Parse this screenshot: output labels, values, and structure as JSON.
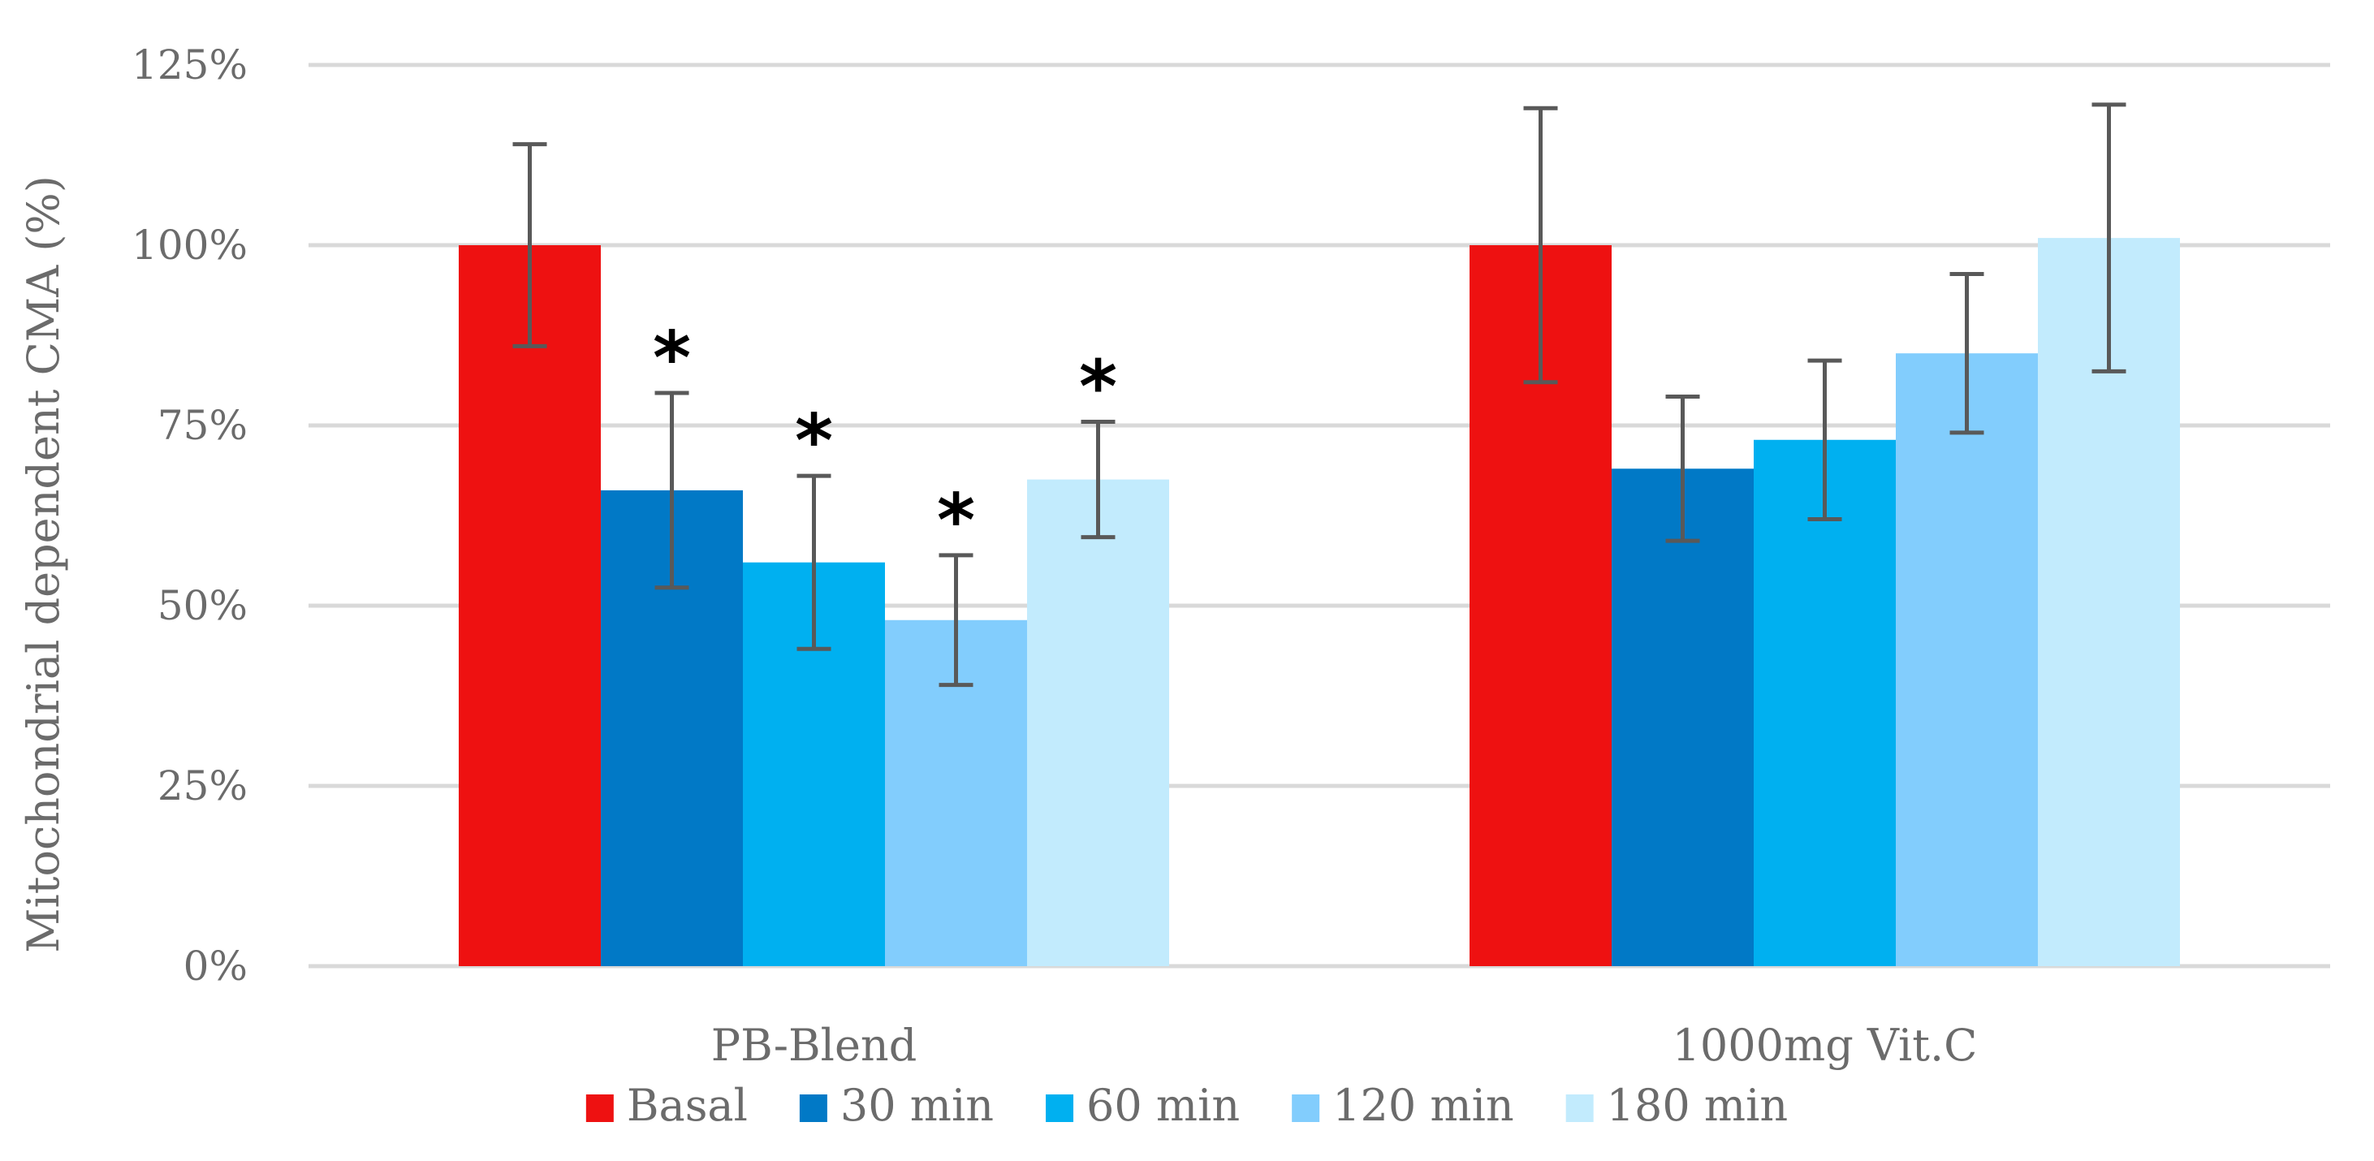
{
  "chart_data": {
    "type": "bar",
    "title": "",
    "xlabel": "",
    "ylabel": "Mitochondrial dependent CMA (%)",
    "ylim": [
      0,
      125
    ],
    "yticks": [
      "0%",
      "25%",
      "50%",
      "75%",
      "100%",
      "125%"
    ],
    "ytick_values": [
      0,
      25,
      50,
      75,
      100,
      125
    ],
    "grid": true,
    "legend_position": "bottom",
    "categories": [
      "PB-Blend",
      "1000mg Vit.C"
    ],
    "series": [
      {
        "name": "Basal",
        "color": "#ee1111",
        "values": [
          100,
          100
        ],
        "errors": [
          14,
          19
        ],
        "significant": [
          false,
          false
        ]
      },
      {
        "name": "30 min",
        "color": "#0179c6",
        "values": [
          66,
          69
        ],
        "errors": [
          13.5,
          10
        ],
        "significant": [
          true,
          false
        ]
      },
      {
        "name": "60 min",
        "color": "#00b0f0",
        "values": [
          56,
          73
        ],
        "errors": [
          12,
          11
        ],
        "significant": [
          true,
          false
        ]
      },
      {
        "name": "120 min",
        "color": "#82cdfd",
        "values": [
          48,
          85
        ],
        "errors": [
          9,
          11
        ],
        "significant": [
          true,
          false
        ]
      },
      {
        "name": "180 min",
        "color": "#c2ebfd",
        "values": [
          67.5,
          101
        ],
        "errors": [
          8,
          18.5
        ],
        "significant": [
          true,
          false
        ]
      }
    ],
    "significance_marker": "*",
    "error_bar_color": "#595959",
    "grid_color": "#d9d9d9"
  }
}
